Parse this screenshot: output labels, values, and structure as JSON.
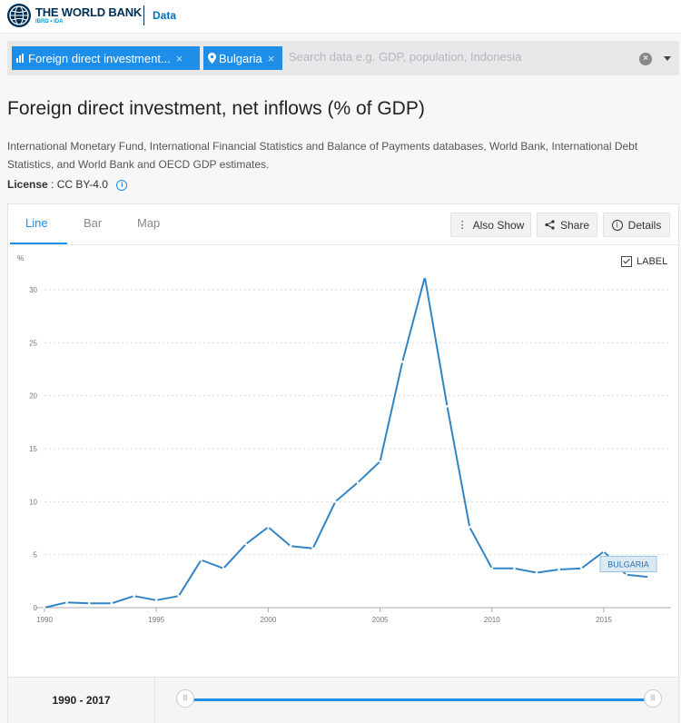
{
  "header": {
    "logo_title": "THE WORLD BANK",
    "logo_subtitle": "IBRD • IDA",
    "data_link": "Data"
  },
  "search": {
    "chips": [
      {
        "label": "Foreign direct investment...",
        "icon": "bar-chart-icon"
      },
      {
        "label": "Bulgaria",
        "icon": "location-pin-icon"
      }
    ],
    "placeholder": "Search data e.g. GDP, population, Indonesia"
  },
  "page": {
    "title": "Foreign direct investment, net inflows (% of GDP)",
    "source": "International Monetary Fund, International Financial Statistics and Balance of Payments databases, World Bank, International Debt Statistics, and World Bank and OECD GDP estimates.",
    "license_label": "License",
    "license_value": ": CC BY-4.0"
  },
  "tabs": {
    "line": "Line",
    "bar": "Bar",
    "map": "Map"
  },
  "toolbar": {
    "also_show": "Also Show",
    "share": "Share",
    "details": "Details"
  },
  "label_toggle": "LABEL",
  "chart_data": {
    "type": "line",
    "title": "Foreign direct investment, net inflows (% of GDP)",
    "ylabel": "%",
    "xlabel": "",
    "ylim": [
      0,
      30
    ],
    "yticks": [
      0,
      5,
      10,
      15,
      20,
      25,
      30
    ],
    "xticks": [
      1990,
      1995,
      2000,
      2005,
      2010,
      2015
    ],
    "grid": true,
    "series": [
      {
        "name": "BULGARIA",
        "color": "#3185c4",
        "x": [
          1990,
          1991,
          1992,
          1993,
          1994,
          1995,
          1996,
          1997,
          1998,
          1999,
          2000,
          2001,
          2002,
          2003,
          2004,
          2005,
          2006,
          2007,
          2008,
          2009,
          2010,
          2011,
          2012,
          2013,
          2014,
          2015,
          2016,
          2017
        ],
        "values": [
          0.0,
          0.5,
          0.4,
          0.4,
          1.1,
          0.7,
          1.1,
          4.5,
          3.7,
          6.0,
          7.6,
          5.8,
          5.6,
          10.0,
          11.8,
          13.8,
          23.2,
          31.2,
          19.0,
          7.6,
          3.7,
          3.7,
          3.3,
          3.6,
          3.7,
          5.3,
          3.1,
          2.9
        ]
      }
    ]
  },
  "range": {
    "label": "1990 - 2017",
    "handle_icon": "|||"
  }
}
